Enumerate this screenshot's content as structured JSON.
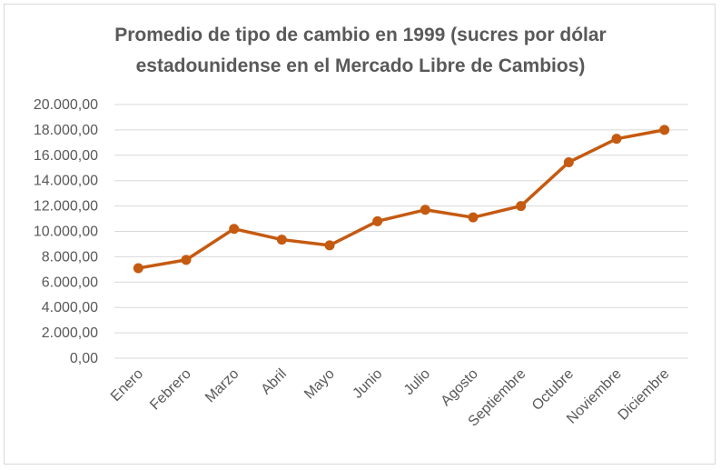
{
  "chart_data": {
    "type": "line",
    "title_line1": "Promedio de tipo de cambio en 1999  (sucres por dólar",
    "title_line2": "estadounidense en el Mercado Libre de Cambios)",
    "categories": [
      "Enero",
      "Febrero",
      "Marzo",
      "Abril",
      "Mayo",
      "Junio",
      "Julio",
      "Agosto",
      "Septiembre",
      "Octubre",
      "Noviembre",
      "Diciembre"
    ],
    "values": [
      7100,
      7750,
      10200,
      9350,
      8900,
      10800,
      11700,
      11100,
      12000,
      15450,
      17300,
      18000
    ],
    "y_ticks": [
      "0,00",
      "2.000,00",
      "4.000,00",
      "6.000,00",
      "8.000,00",
      "10.000,00",
      "12.000,00",
      "14.000,00",
      "16.000,00",
      "18.000,00",
      "20.000,00"
    ],
    "ylim": [
      0,
      20000
    ],
    "grid": true,
    "line_color": "#C55A11",
    "grid_color": "#d9d9d9"
  }
}
